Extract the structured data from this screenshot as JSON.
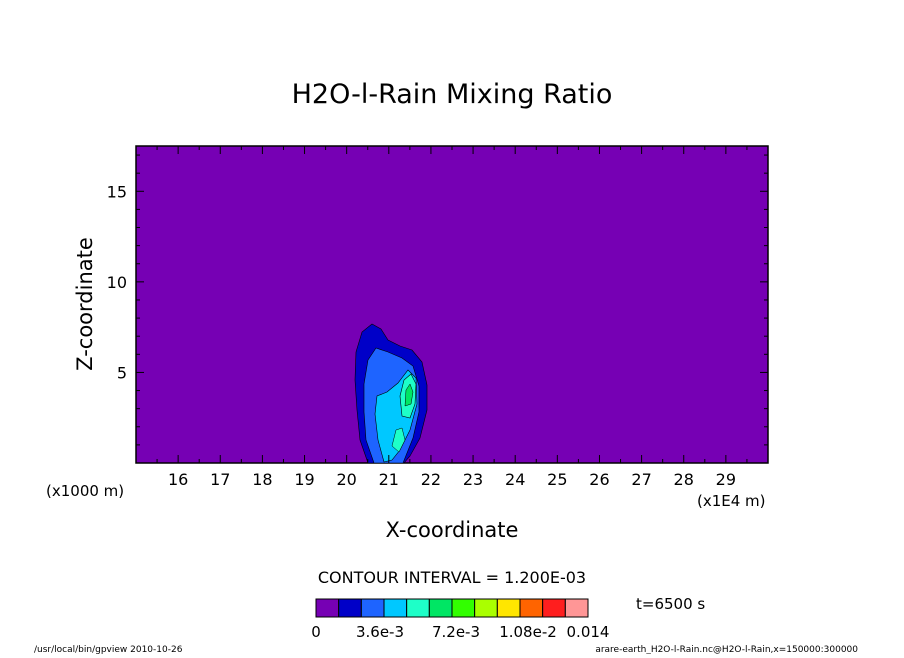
{
  "chart_data": {
    "type": "heatmap",
    "title": "H2O-l-Rain Mixing Ratio",
    "xlabel": "X-coordinate",
    "ylabel": "Z-coordinate",
    "x_unit_left": "(x1000 m)",
    "x_unit_right": "(x1E4 m)",
    "x_ticks": [
      "16",
      "17",
      "18",
      "19",
      "20",
      "21",
      "22",
      "23",
      "24",
      "25",
      "26",
      "27",
      "28",
      "29"
    ],
    "y_ticks": [
      "5",
      "10",
      "15"
    ],
    "xlim": [
      150000,
      300000
    ],
    "ylim": [
      0,
      17.5
    ],
    "contour_interval_label": "CONTOUR INTERVAL = 1.200E-03",
    "time_label": "t=6500 s",
    "colorbar": {
      "colors": [
        "#7600b4",
        "#0000c8",
        "#1e64ff",
        "#00c8ff",
        "#1effc8",
        "#00e664",
        "#32ff00",
        "#aaff00",
        "#ffe600",
        "#ff6400",
        "#ff1e1e",
        "#ff9696"
      ],
      "labels": [
        "0",
        "3.6e-3",
        "7.2e-3",
        "1.08e-2",
        "0.014"
      ]
    },
    "footer_left": "/usr/local/bin/gpview   2010-10-26",
    "footer_right": "arare-earth_H2O-l-Rain.nc@H2O-l-Rain,x=150000:300000"
  }
}
